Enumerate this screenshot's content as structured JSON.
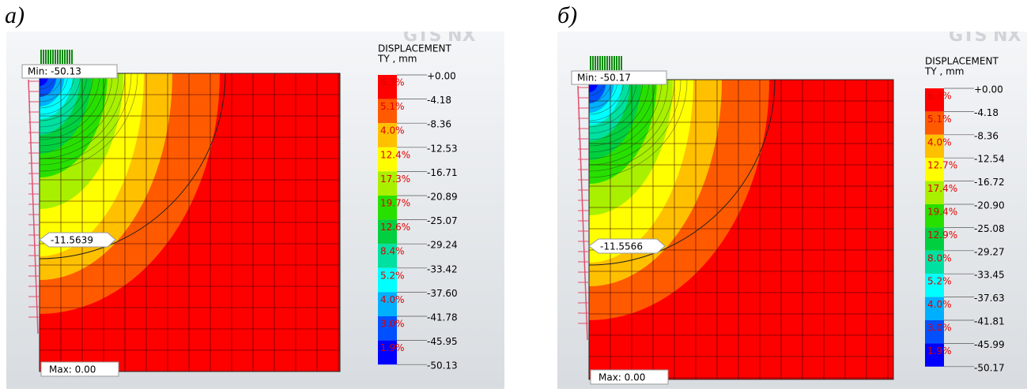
{
  "panels": [
    {
      "label": "а)",
      "logo": "GTS NX",
      "legend_title": "DISPLACEMENT",
      "legend_unit": "TY , mm",
      "min_label": "Min: -50.13",
      "max_label": "Max: 0.00",
      "probe": "-11.5639",
      "levels": [
        "+0.00",
        "-4.18",
        "-8.36",
        "-12.53",
        "-16.71",
        "-20.89",
        "-25.07",
        "-29.24",
        "-33.42",
        "-37.60",
        "-41.78",
        "-45.95",
        "-50.13"
      ],
      "percents": [
        "6.3%",
        "5.1%",
        "4.0%",
        "12.4%",
        "17.3%",
        "19.7%",
        "12.6%",
        "8.4%",
        "5.2%",
        "4.0%",
        "3.0%",
        "1.9%"
      ]
    },
    {
      "label": "б)",
      "logo": "GTS NX",
      "legend_title": "DISPLACEMENT",
      "legend_unit": "TY , mm",
      "min_label": "Min: -50.17",
      "max_label": "Max: 0.00",
      "probe": "-11.5566",
      "levels": [
        "+0.00",
        "-4.18",
        "-8.36",
        "-12.54",
        "-16.72",
        "-20.90",
        "-25.08",
        "-29.27",
        "-33.45",
        "-37.63",
        "-41.81",
        "-45.99",
        "-50.17"
      ],
      "percents": [
        "6.3%",
        "5.1%",
        "4.0%",
        "12.7%",
        "17.4%",
        "19.4%",
        "12.9%",
        "8.0%",
        "5.2%",
        "4.0%",
        "3.0%",
        "1.9%"
      ]
    }
  ],
  "band_colors": [
    "#ff0000",
    "#ff5a00",
    "#ffc000",
    "#ffff00",
    "#a8f000",
    "#28e000",
    "#00d040",
    "#00e0a0",
    "#00ffff",
    "#00b0ff",
    "#0050ff",
    "#0000ff"
  ]
}
